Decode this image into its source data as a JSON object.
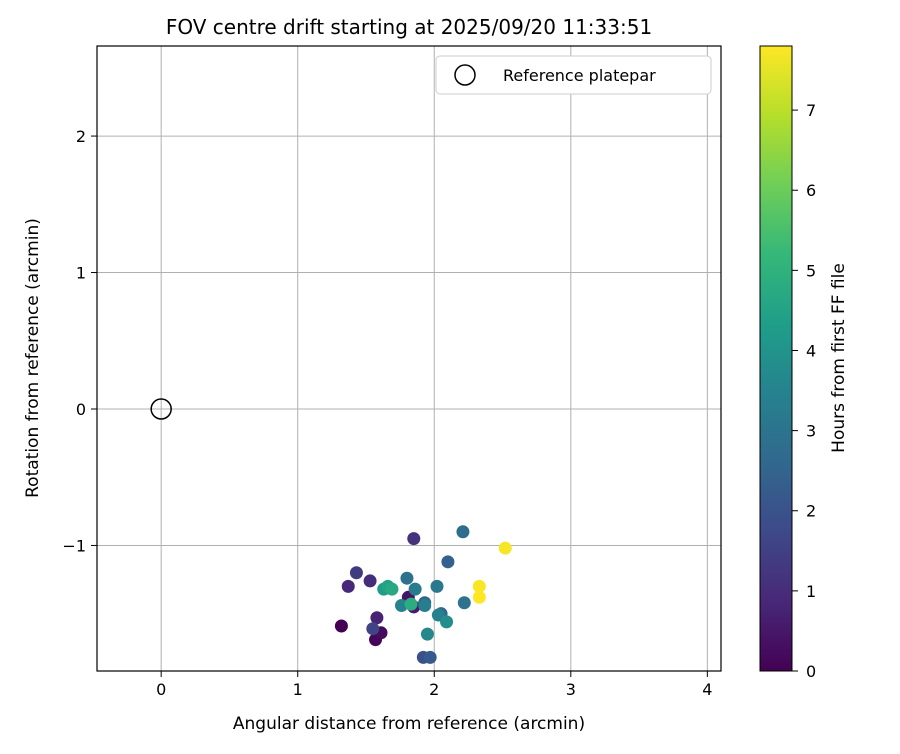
{
  "chart_data": {
    "type": "scatter",
    "title": "FOV centre drift starting at 2025/09/20 11:33:51",
    "xlabel": "Angular distance from reference (arcmin)",
    "ylabel": "Rotation from reference (arcmin)",
    "xlim": [
      -0.47,
      4.1
    ],
    "ylim": [
      -1.92,
      2.66
    ],
    "xticks": [
      0,
      1,
      2,
      3,
      4
    ],
    "xtick_labels": [
      "0",
      "1",
      "2",
      "3",
      "4"
    ],
    "yticks": [
      -1,
      0,
      1,
      2
    ],
    "ytick_labels": [
      "−1",
      "0",
      "1",
      "2"
    ],
    "grid": true,
    "legend": {
      "position": "top-right",
      "label": "Reference platepar"
    },
    "reference_point": {
      "x": 0,
      "y": 0
    },
    "colorbar": {
      "label": "Hours from first FF file",
      "range": [
        0,
        7.8
      ],
      "ticks": [
        0,
        1,
        2,
        3,
        4,
        5,
        6,
        7
      ],
      "tick_labels": [
        "0",
        "1",
        "2",
        "3",
        "4",
        "5",
        "6",
        "7"
      ],
      "colormap": [
        "#440154",
        "#482878",
        "#3e4989",
        "#31688e",
        "#26828e",
        "#1f9e89",
        "#35b779",
        "#6ece58",
        "#b5de2b",
        "#fde725"
      ]
    },
    "points": [
      {
        "x": 1.32,
        "y": -1.59,
        "hours": 0.0
      },
      {
        "x": 1.57,
        "y": -1.69,
        "hours": 0.1
      },
      {
        "x": 1.61,
        "y": -1.64,
        "hours": 0.25
      },
      {
        "x": 1.81,
        "y": -1.38,
        "hours": 0.4
      },
      {
        "x": 1.85,
        "y": -1.45,
        "hours": 0.55
      },
      {
        "x": 1.58,
        "y": -1.53,
        "hours": 0.75
      },
      {
        "x": 1.37,
        "y": -1.3,
        "hours": 0.9
      },
      {
        "x": 1.53,
        "y": -1.26,
        "hours": 1.0
      },
      {
        "x": 1.85,
        "y": -0.95,
        "hours": 1.15
      },
      {
        "x": 1.43,
        "y": -1.2,
        "hours": 1.35
      },
      {
        "x": 1.55,
        "y": -1.61,
        "hours": 1.6
      },
      {
        "x": 1.92,
        "y": -1.82,
        "hours": 1.9
      },
      {
        "x": 1.97,
        "y": -1.82,
        "hours": 2.2
      },
      {
        "x": 2.1,
        "y": -1.12,
        "hours": 2.4
      },
      {
        "x": 1.93,
        "y": -1.42,
        "hours": 2.5
      },
      {
        "x": 2.05,
        "y": -1.5,
        "hours": 2.6
      },
      {
        "x": 2.21,
        "y": -0.9,
        "hours": 2.75
      },
      {
        "x": 1.8,
        "y": -1.24,
        "hours": 2.9
      },
      {
        "x": 2.22,
        "y": -1.42,
        "hours": 2.95
      },
      {
        "x": 2.02,
        "y": -1.3,
        "hours": 3.1
      },
      {
        "x": 1.86,
        "y": -1.32,
        "hours": 3.25
      },
      {
        "x": 1.93,
        "y": -1.44,
        "hours": 3.3
      },
      {
        "x": 2.03,
        "y": -1.51,
        "hours": 3.4
      },
      {
        "x": 1.76,
        "y": -1.44,
        "hours": 3.5
      },
      {
        "x": 1.95,
        "y": -1.65,
        "hours": 3.65
      },
      {
        "x": 2.09,
        "y": -1.56,
        "hours": 3.85
      },
      {
        "x": 1.63,
        "y": -1.32,
        "hours": 4.3
      },
      {
        "x": 1.66,
        "y": -1.3,
        "hours": 4.5
      },
      {
        "x": 1.69,
        "y": -1.32,
        "hours": 4.7
      },
      {
        "x": 1.83,
        "y": -1.43,
        "hours": 4.85
      },
      {
        "x": 2.52,
        "y": -1.02,
        "hours": 7.7
      },
      {
        "x": 2.33,
        "y": -1.3,
        "hours": 7.75
      },
      {
        "x": 2.33,
        "y": -1.38,
        "hours": 7.8
      }
    ]
  }
}
